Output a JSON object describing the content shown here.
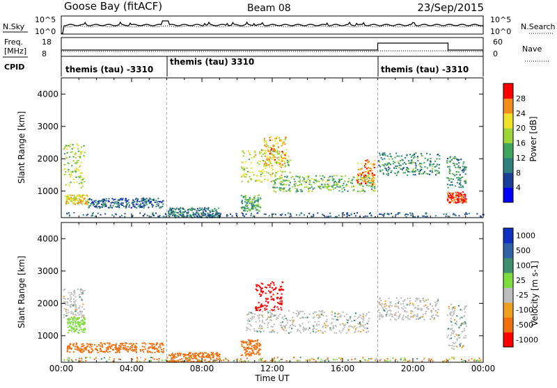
{
  "header": {
    "station": "Goose Bay (fitACF)",
    "beam": "Beam 08",
    "date": "23/Sep/2015"
  },
  "noise_panel": {
    "left_label": "N.Sky",
    "left_ticks": [
      "10^5",
      "10^0"
    ],
    "right_ticks": [
      "10^5",
      "10^0"
    ],
    "right_label": "N.Search"
  },
  "freq_panel": {
    "left_label_1": "Freq.",
    "left_label_2": "[MHz]",
    "left_ticks": [
      "18",
      "8"
    ],
    "right_ticks": [
      "60",
      "0"
    ],
    "right_label": "Nave",
    "cpid_label": "CPID"
  },
  "cpid_segments": [
    {
      "label": "themis (tau) -3310",
      "start_h": 0,
      "end_h": 6
    },
    {
      "label": "themis (tau) 3310",
      "start_h": 6,
      "end_h": 18
    },
    {
      "label": "themis (tau) -3310",
      "start_h": 18,
      "end_h": 24
    }
  ],
  "colors": {
    "power_scale": [
      "#0000ff",
      "#1a3f99",
      "#2f7f7f",
      "#3fa65f",
      "#9ed63a",
      "#f2e12b",
      "#f28c1a",
      "#ff0000"
    ],
    "velocity_scale": [
      "#1030c0",
      "#2f62a5",
      "#3f8f6f",
      "#7fdc3f",
      "#bdbdbd",
      "#f0a020",
      "#f07010",
      "#ff0000"
    ],
    "ground_scatter": "#bdbdbd",
    "grid": "#999999"
  },
  "chart_data": [
    {
      "type": "heatmap",
      "title": "",
      "xlabel": "",
      "ylabel": "Slant Range [km]",
      "x_ticks": [
        "00:00",
        "04:00",
        "08:00",
        "12:00",
        "16:00",
        "20:00",
        "00:00"
      ],
      "x_range_h": [
        0,
        24
      ],
      "y_ticks": [
        1000,
        2000,
        3000,
        4000
      ],
      "ylim": [
        180,
        4500
      ],
      "colorbar": {
        "label": "Power [dB]",
        "ticks": [
          "4",
          "8",
          "12",
          "16",
          "20",
          "24",
          "28"
        ],
        "range": [
          0,
          32
        ]
      },
      "echo_regions": [
        {
          "t": [
            0.1,
            1.3
          ],
          "r": [
            1100,
            2500
          ],
          "level": 18
        },
        {
          "t": [
            0.2,
            1.5
          ],
          "r": [
            600,
            900
          ],
          "level": 22
        },
        {
          "t": [
            1.5,
            5.8
          ],
          "r": [
            500,
            800
          ],
          "level": 8
        },
        {
          "t": [
            6.0,
            9.0
          ],
          "r": [
            200,
            500
          ],
          "level": 10
        },
        {
          "t": [
            10.2,
            11.3
          ],
          "r": [
            400,
            900
          ],
          "level": 14
        },
        {
          "t": [
            10.2,
            13.0
          ],
          "r": [
            1300,
            2300
          ],
          "level": 20
        },
        {
          "t": [
            11.5,
            12.8
          ],
          "r": [
            1800,
            2700
          ],
          "level": 24
        },
        {
          "t": [
            12.0,
            17.8
          ],
          "r": [
            1000,
            1500
          ],
          "level": 16
        },
        {
          "t": [
            16.8,
            17.8
          ],
          "r": [
            1200,
            2000
          ],
          "level": 26
        },
        {
          "t": [
            18.0,
            21.5
          ],
          "r": [
            1500,
            2200
          ],
          "level": 12
        },
        {
          "t": [
            21.9,
            23.0
          ],
          "r": [
            650,
            1000
          ],
          "level": 30
        },
        {
          "t": [
            21.9,
            23.0
          ],
          "r": [
            1100,
            2100
          ],
          "level": 12
        }
      ]
    },
    {
      "type": "heatmap",
      "title": "",
      "xlabel": "Time UT",
      "ylabel": "Slant Range [km]",
      "x_ticks": [
        "00:00",
        "04:00",
        "08:00",
        "12:00",
        "16:00",
        "20:00",
        "00:00"
      ],
      "x_range_h": [
        0,
        24
      ],
      "y_ticks": [
        1000,
        2000,
        3000,
        4000
      ],
      "ylim": [
        180,
        4500
      ],
      "colorbar": {
        "label": "Velocity [m s-1]",
        "ticks": [
          "1000",
          "500",
          "100",
          "25",
          "-25",
          "-100",
          "-500",
          "-1000"
        ]
      },
      "echo_regions": [
        {
          "t": [
            0.1,
            1.3
          ],
          "r": [
            1500,
            2500
          ],
          "v": 0
        },
        {
          "t": [
            0.3,
            1.3
          ],
          "r": [
            1100,
            1600
          ],
          "v": 150
        },
        {
          "t": [
            0.3,
            5.8
          ],
          "r": [
            500,
            800
          ],
          "v": -150
        },
        {
          "t": [
            6.0,
            9.0
          ],
          "r": [
            200,
            500
          ],
          "v": -150
        },
        {
          "t": [
            10.2,
            11.3
          ],
          "r": [
            400,
            900
          ],
          "v": -300
        },
        {
          "t": [
            11.0,
            12.6
          ],
          "r": [
            1800,
            2700
          ],
          "v": -700
        },
        {
          "t": [
            10.5,
            17.5
          ],
          "r": [
            1100,
            1800
          ],
          "v": 0
        },
        {
          "t": [
            18.0,
            21.5
          ],
          "r": [
            1500,
            2200
          ],
          "v": 0
        },
        {
          "t": [
            21.9,
            23.0
          ],
          "r": [
            600,
            2000
          ],
          "v": 0
        }
      ]
    }
  ]
}
